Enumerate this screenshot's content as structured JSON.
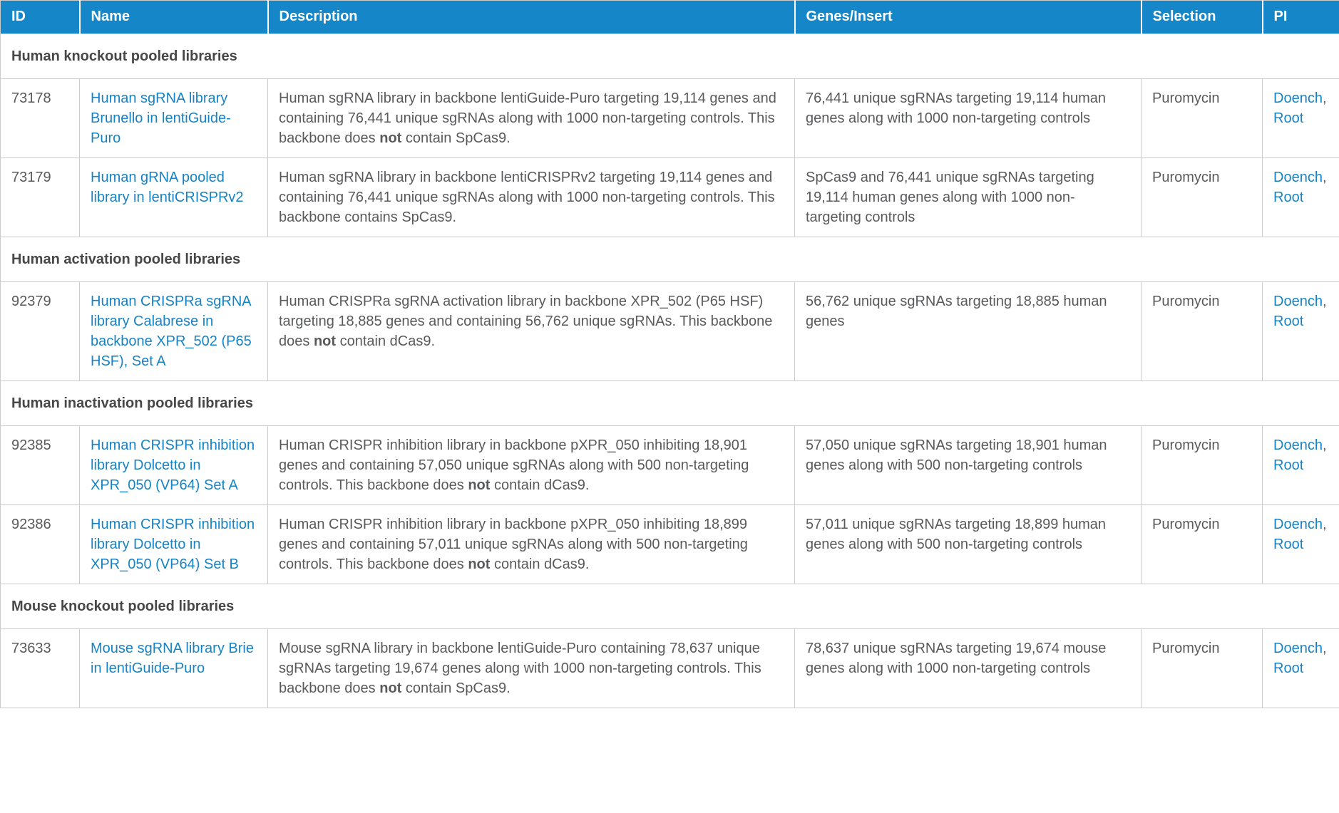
{
  "table": {
    "colors": {
      "header_bg": "#1587c9",
      "header_text": "#ffffff",
      "link": "#1683c6",
      "body_text": "#595a5c",
      "section_text": "#474749",
      "border": "#cccccc"
    },
    "columns": [
      {
        "id": "id",
        "label": "ID"
      },
      {
        "id": "name",
        "label": "Name"
      },
      {
        "id": "description",
        "label": "Description"
      },
      {
        "id": "genes",
        "label": "Genes/Insert"
      },
      {
        "id": "selection",
        "label": "Selection"
      },
      {
        "id": "pi",
        "label": "PI"
      }
    ],
    "pi_separator": ", ",
    "sections": [
      {
        "title": "Human knockout pooled libraries",
        "rows": [
          {
            "id": "73178",
            "name": "Human sgRNA library Brunello in lentiGuide-Puro",
            "description": [
              {
                "text": "Human sgRNA library in backbone lentiGuide-Puro targeting 19,114 genes and containing 76,441 unique sgRNAs along with 1000 non-targeting controls. This backbone does ",
                "bold": false
              },
              {
                "text": "not",
                "bold": true
              },
              {
                "text": " contain SpCas9.",
                "bold": false
              }
            ],
            "genes": "76,441 unique sgRNAs targeting 19,114 human genes along with 1000 non-targeting controls",
            "selection": "Puromycin",
            "pi": [
              "Doench",
              "Root"
            ]
          },
          {
            "id": "73179",
            "name": "Human gRNA pooled library in lentiCRISPRv2",
            "description": [
              {
                "text": "Human sgRNA library in backbone lentiCRISPRv2 targeting 19,114 genes and containing 76,441 unique sgRNAs along with 1000 non-targeting controls. This backbone contains SpCas9.",
                "bold": false
              }
            ],
            "genes": "SpCas9 and 76,441 unique sgRNAs targeting 19,114 human genes along with 1000 non-targeting controls",
            "selection": "Puromycin",
            "pi": [
              "Doench",
              "Root"
            ]
          }
        ]
      },
      {
        "title": "Human activation pooled libraries",
        "rows": [
          {
            "id": "92379",
            "name": "Human CRISPRa sgRNA library Calabrese in backbone XPR_502 (P65 HSF), Set A",
            "description": [
              {
                "text": "Human CRISPRa sgRNA activation library in backbone XPR_502 (P65 HSF) targeting 18,885 genes and containing 56,762 unique sgRNAs. This backbone does ",
                "bold": false
              },
              {
                "text": "not",
                "bold": true
              },
              {
                "text": " contain dCas9.",
                "bold": false
              }
            ],
            "genes": "56,762 unique sgRNAs targeting 18,885 human genes",
            "selection": "Puromycin",
            "pi": [
              "Doench",
              "Root"
            ]
          }
        ]
      },
      {
        "title": "Human inactivation pooled libraries",
        "rows": [
          {
            "id": "92385",
            "name": "Human CRISPR inhibition library Dolcetto in XPR_050 (VP64) Set A",
            "description": [
              {
                "text": "Human CRISPR inhibition library in backbone pXPR_050 inhibiting 18,901 genes and containing 57,050 unique sgRNAs along with 500 non-targeting controls. This backbone does ",
                "bold": false
              },
              {
                "text": "not",
                "bold": true
              },
              {
                "text": " contain dCas9.",
                "bold": false
              }
            ],
            "genes": "57,050 unique sgRNAs targeting 18,901 human genes along with 500 non-targeting controls",
            "selection": "Puromycin",
            "pi": [
              "Doench",
              "Root"
            ]
          },
          {
            "id": "92386",
            "name": "Human CRISPR inhibition library Dolcetto in XPR_050 (VP64) Set B",
            "description": [
              {
                "text": "Human CRISPR inhibition library in backbone pXPR_050 inhibiting 18,899 genes and containing 57,011 unique sgRNAs along with 500 non-targeting controls. This backbone does ",
                "bold": false
              },
              {
                "text": "not",
                "bold": true
              },
              {
                "text": " contain dCas9.",
                "bold": false
              }
            ],
            "genes": "57,011 unique sgRNAs targeting 18,899 human genes along with 500 non-targeting controls",
            "selection": "Puromycin",
            "pi": [
              "Doench",
              "Root"
            ]
          }
        ]
      },
      {
        "title": "Mouse knockout pooled libraries",
        "rows": [
          {
            "id": "73633",
            "name": "Mouse sgRNA library Brie in lentiGuide-Puro",
            "description": [
              {
                "text": "Mouse sgRNA library in backbone lentiGuide-Puro containing 78,637 unique sgRNAs targeting 19,674 genes along with 1000 non-targeting controls. This backbone does ",
                "bold": false
              },
              {
                "text": "not",
                "bold": true
              },
              {
                "text": " contain SpCas9.",
                "bold": false
              }
            ],
            "genes": "78,637 unique sgRNAs targeting 19,674 mouse genes along with 1000 non-targeting controls",
            "selection": "Puromycin",
            "pi": [
              "Doench",
              "Root"
            ]
          }
        ]
      }
    ]
  }
}
